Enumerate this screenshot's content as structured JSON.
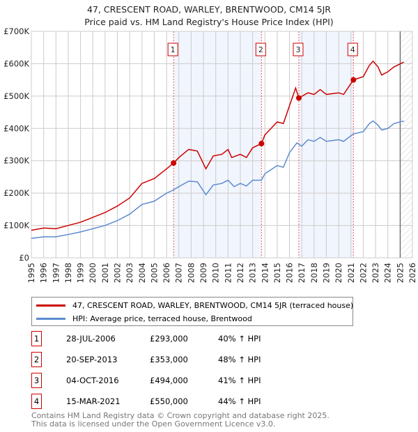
{
  "chart_data": {
    "type": "line",
    "title": "47, CRESCENT ROAD, WARLEY, BRENTWOOD, CM14 5JR",
    "subtitle": "Price paid vs. HM Land Registry's House Price Index (HPI)",
    "xlim": [
      1995,
      2026
    ],
    "ylim": [
      0,
      700000
    ],
    "x_ticks": [
      "1995",
      "1996",
      "1997",
      "1998",
      "1999",
      "2000",
      "2001",
      "2002",
      "2003",
      "2004",
      "2005",
      "2006",
      "2007",
      "2008",
      "2009",
      "2010",
      "2011",
      "2012",
      "2013",
      "2014",
      "2015",
      "2016",
      "2017",
      "2018",
      "2019",
      "2020",
      "2021",
      "2022",
      "2023",
      "2024",
      "2025",
      "2026"
    ],
    "y_ticks": [
      {
        "v": 0,
        "label": "£0"
      },
      {
        "v": 100000,
        "label": "£100K"
      },
      {
        "v": 200000,
        "label": "£200K"
      },
      {
        "v": 300000,
        "label": "£300K"
      },
      {
        "v": 400000,
        "label": "£400K"
      },
      {
        "v": 500000,
        "label": "£500K"
      },
      {
        "v": 600000,
        "label": "£600K"
      },
      {
        "v": 700000,
        "label": "£700K"
      }
    ],
    "grid": true,
    "series": [
      {
        "name": "47, CRESCENT ROAD, WARLEY, BRENTWOOD, CM14 5JR (terraced house)",
        "color": "#cc0000",
        "x": [
          1995,
          1996,
          1997,
          1998,
          1999,
          2000,
          2001,
          2002,
          2003,
          2004,
          2005,
          2006,
          2006.57,
          2007,
          2007.8,
          2008.5,
          2009.2,
          2009.8,
          2010.5,
          2011,
          2011.3,
          2012,
          2012.5,
          2013,
          2013.72,
          2014,
          2015,
          2015.5,
          2016,
          2016.5,
          2016.76,
          2017.5,
          2018,
          2018.5,
          2019,
          2020,
          2020.4,
          2021.2,
          2022,
          2022.5,
          2022.8,
          2023.2,
          2023.5,
          2024,
          2024.5,
          2025.3
        ],
        "y": [
          85000,
          92000,
          90000,
          100000,
          110000,
          125000,
          140000,
          160000,
          185000,
          230000,
          245000,
          275000,
          293000,
          310000,
          335000,
          330000,
          275000,
          315000,
          320000,
          335000,
          310000,
          320000,
          310000,
          340000,
          353000,
          380000,
          420000,
          415000,
          470000,
          525000,
          494000,
          510000,
          505000,
          520000,
          505000,
          510000,
          505000,
          550000,
          560000,
          595000,
          608000,
          590000,
          565000,
          575000,
          590000,
          605000
        ]
      },
      {
        "name": "HPI: Average price, terraced house, Brentwood",
        "color": "#5b8bd0",
        "x": [
          1995,
          1996,
          1997,
          1998,
          1999,
          2000,
          2001,
          2002,
          2003,
          2004,
          2005,
          2006,
          2006.57,
          2007,
          2007.8,
          2008.5,
          2009.2,
          2009.8,
          2010.5,
          2011,
          2011.5,
          2012,
          2012.5,
          2013,
          2013.72,
          2014,
          2015,
          2015.5,
          2016,
          2016.6,
          2017,
          2017.5,
          2018,
          2018.5,
          2019,
          2020,
          2020.4,
          2021.2,
          2022,
          2022.5,
          2022.8,
          2023.2,
          2023.5,
          2024,
          2024.5,
          2025.3
        ],
        "y": [
          60000,
          65000,
          65000,
          72000,
          80000,
          90000,
          100000,
          115000,
          135000,
          165000,
          175000,
          200000,
          210000,
          220000,
          237000,
          235000,
          195000,
          225000,
          230000,
          240000,
          220000,
          230000,
          222000,
          240000,
          240000,
          260000,
          285000,
          280000,
          325000,
          355000,
          345000,
          365000,
          360000,
          372000,
          360000,
          365000,
          360000,
          383000,
          390000,
          415000,
          423000,
          410000,
          395000,
          400000,
          415000,
          423000
        ]
      }
    ],
    "sales": [
      {
        "n": "1",
        "x": 2006.57,
        "y": 293000,
        "date": "28-JUL-2006",
        "price": "£293,000",
        "hpi": "40% ↑ HPI"
      },
      {
        "n": "2",
        "x": 2013.72,
        "y": 353000,
        "date": "20-SEP-2013",
        "price": "£353,000",
        "hpi": "48% ↑ HPI"
      },
      {
        "n": "3",
        "x": 2016.76,
        "y": 494000,
        "date": "04-OCT-2016",
        "price": "£494,000",
        "hpi": "41% ↑ HPI"
      },
      {
        "n": "4",
        "x": 2021.2,
        "y": 550000,
        "date": "15-MAR-2021",
        "price": "£550,000",
        "hpi": "44% ↑ HPI"
      }
    ],
    "shaded": [
      [
        2006.57,
        2013.72
      ],
      [
        2016.76,
        2021.2
      ]
    ],
    "forecast_from": 2025.0
  },
  "footer": [
    "Contains HM Land Registry data © Crown copyright and database right 2025.",
    "This data is licensed under the Open Government Licence v3.0."
  ]
}
